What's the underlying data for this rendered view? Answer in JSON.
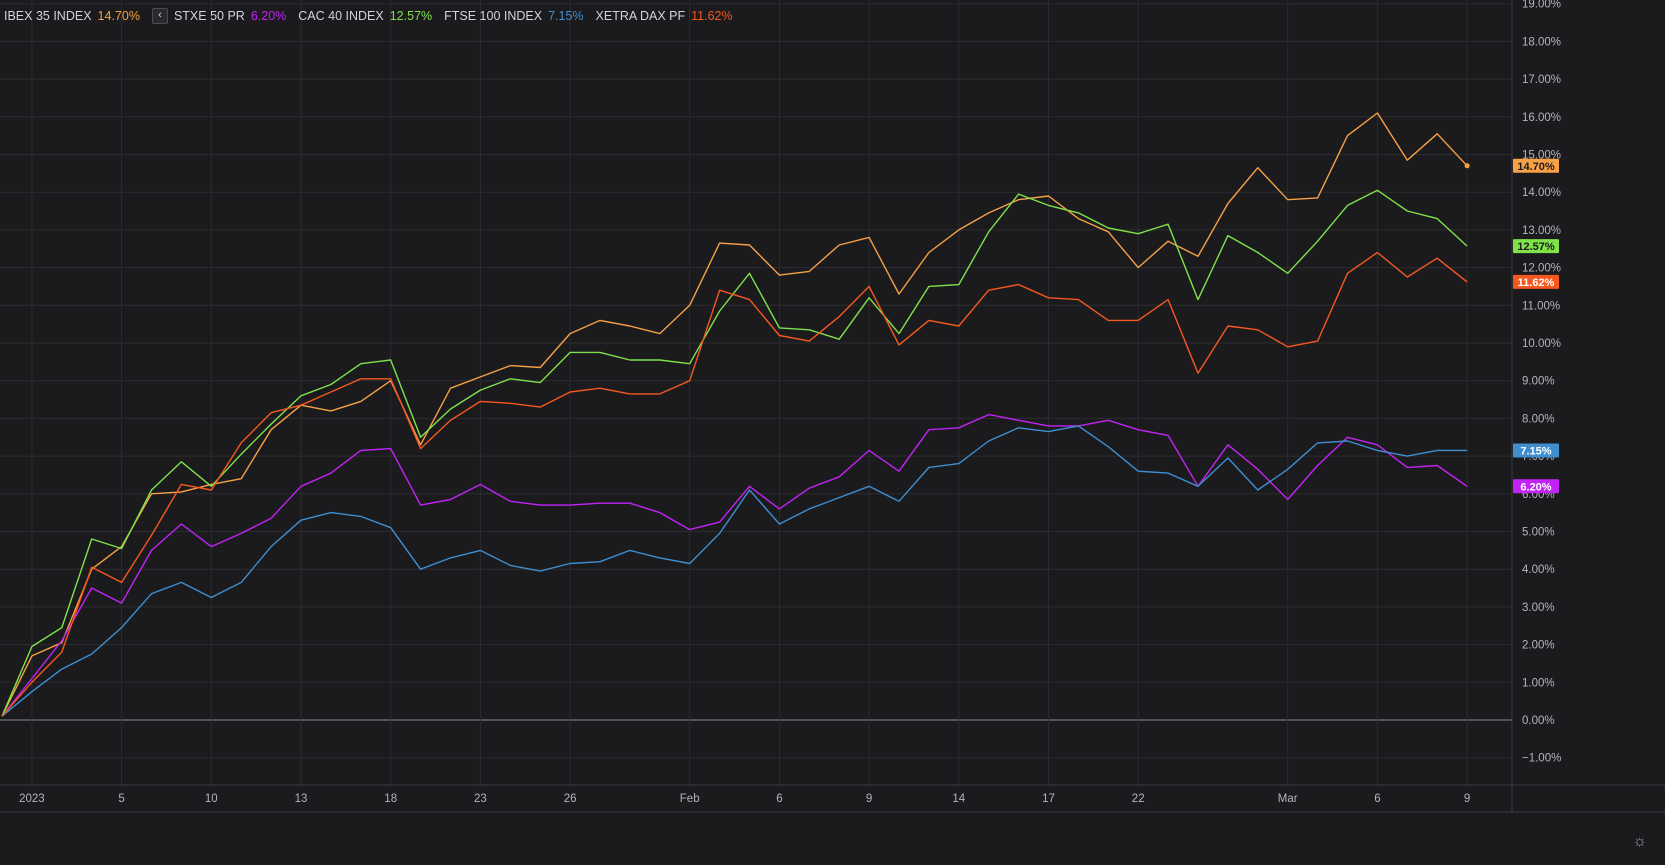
{
  "chart_data": {
    "type": "line",
    "ylim": [
      -1.5,
      19.2
    ],
    "y_ticks": [
      "19.00%",
      "18.00%",
      "17.00%",
      "16.00%",
      "15.00%",
      "14.00%",
      "13.00%",
      "12.00%",
      "11.00%",
      "10.00%",
      "9.00%",
      "8.00%",
      "7.00%",
      "6.00%",
      "5.00%",
      "4.00%",
      "3.00%",
      "2.00%",
      "1.00%",
      "0.00%",
      "−1.00%"
    ],
    "x_ticks": [
      {
        "i": 1,
        "label": "2023"
      },
      {
        "i": 4,
        "label": "5"
      },
      {
        "i": 7,
        "label": "10"
      },
      {
        "i": 10,
        "label": "13"
      },
      {
        "i": 13,
        "label": "18"
      },
      {
        "i": 16,
        "label": "23"
      },
      {
        "i": 19,
        "label": "26"
      },
      {
        "i": 23,
        "label": "Feb"
      },
      {
        "i": 26,
        "label": "6"
      },
      {
        "i": 29,
        "label": "9"
      },
      {
        "i": 32,
        "label": "14"
      },
      {
        "i": 35,
        "label": "17"
      },
      {
        "i": 38,
        "label": "22"
      },
      {
        "i": 43,
        "label": "Mar"
      },
      {
        "i": 46,
        "label": "6"
      },
      {
        "i": 49,
        "label": "9"
      }
    ],
    "grid": true,
    "legend": "top-left",
    "series": [
      {
        "name": "IBEX 35 INDEX",
        "value_label": "14.70%",
        "color": "#f7a045",
        "values": [
          0.1,
          1.7,
          2.05,
          4.0,
          4.6,
          6.0,
          6.05,
          6.25,
          6.4,
          7.7,
          8.35,
          8.2,
          8.45,
          9.0,
          7.3,
          8.8,
          9.1,
          9.4,
          9.35,
          10.25,
          10.6,
          10.45,
          10.25,
          11.0,
          12.65,
          12.6,
          11.8,
          11.9,
          12.6,
          12.8,
          11.3,
          12.4,
          13.0,
          13.45,
          13.8,
          13.9,
          13.3,
          12.95,
          12.0,
          12.7,
          12.3,
          13.7,
          14.65,
          13.8,
          13.85,
          15.5,
          16.1,
          14.85,
          15.55,
          14.7
        ]
      },
      {
        "name": "STXE 50 PR",
        "value_label": "6.20%",
        "color": "#c223f5",
        "values": [
          0.1,
          1.1,
          2.1,
          3.5,
          3.1,
          4.5,
          5.2,
          4.6,
          4.95,
          5.35,
          6.2,
          6.55,
          7.15,
          7.2,
          5.7,
          5.85,
          6.25,
          5.8,
          5.7,
          5.7,
          5.75,
          5.75,
          5.5,
          5.05,
          5.25,
          6.2,
          5.6,
          6.15,
          6.45,
          7.15,
          6.6,
          7.7,
          7.75,
          8.1,
          7.95,
          7.8,
          7.8,
          7.95,
          7.7,
          7.55,
          6.2,
          7.3,
          6.65,
          5.85,
          6.75,
          7.5,
          7.3,
          6.7,
          6.75,
          6.2
        ]
      },
      {
        "name": "CAC 40 INDEX",
        "value_label": "12.57%",
        "color": "#7fe24a",
        "values": [
          0.1,
          1.95,
          2.45,
          4.8,
          4.55,
          6.1,
          6.85,
          6.2,
          7.05,
          7.85,
          8.6,
          8.9,
          9.45,
          9.55,
          7.5,
          8.25,
          8.75,
          9.05,
          8.95,
          9.75,
          9.75,
          9.55,
          9.55,
          9.45,
          10.85,
          11.85,
          10.4,
          10.35,
          10.1,
          11.2,
          10.25,
          11.5,
          11.55,
          12.95,
          13.95,
          13.65,
          13.45,
          13.05,
          12.9,
          13.15,
          11.15,
          12.85,
          12.4,
          11.85,
          12.7,
          13.65,
          14.05,
          13.5,
          13.3,
          12.57
        ]
      },
      {
        "name": "FTSE 100 INDEX",
        "value_label": "7.15%",
        "color": "#3e8ed0",
        "values": [
          0.1,
          0.75,
          1.35,
          1.75,
          2.45,
          3.35,
          3.65,
          3.25,
          3.65,
          4.6,
          5.3,
          5.5,
          5.4,
          5.1,
          4.0,
          4.3,
          4.5,
          4.1,
          3.95,
          4.15,
          4.2,
          4.5,
          4.3,
          4.15,
          4.95,
          6.1,
          5.2,
          5.6,
          5.9,
          6.2,
          5.8,
          6.7,
          6.8,
          7.4,
          7.75,
          7.65,
          7.8,
          7.25,
          6.6,
          6.55,
          6.2,
          6.95,
          6.1,
          6.65,
          7.35,
          7.4,
          7.15,
          7.0,
          7.15,
          7.15
        ]
      },
      {
        "name": "XETRA DAX PF",
        "value_label": "11.62%",
        "color": "#f5581f",
        "values": [
          0.1,
          1.0,
          1.8,
          4.05,
          3.65,
          4.9,
          6.25,
          6.1,
          7.35,
          8.15,
          8.35,
          8.7,
          9.05,
          9.05,
          7.2,
          7.95,
          8.45,
          8.4,
          8.3,
          8.7,
          8.8,
          8.65,
          8.65,
          9.0,
          11.4,
          11.15,
          10.2,
          10.05,
          10.7,
          11.5,
          9.95,
          10.6,
          10.45,
          11.4,
          11.55,
          11.2,
          11.15,
          10.6,
          10.6,
          11.15,
          9.2,
          10.45,
          10.35,
          9.9,
          10.05,
          11.85,
          12.4,
          11.75,
          12.25,
          11.62
        ]
      }
    ]
  }
}
